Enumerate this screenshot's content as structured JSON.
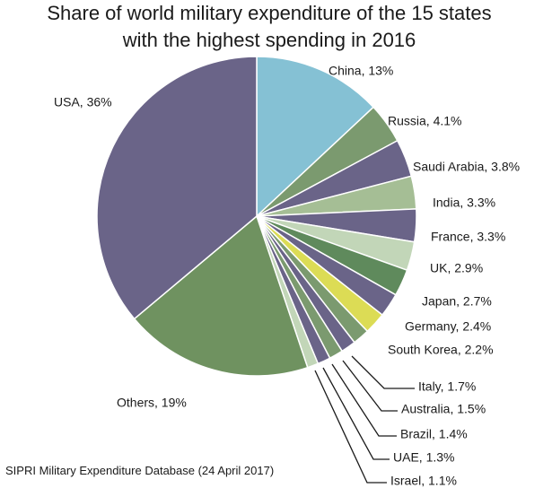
{
  "chart_data": {
    "type": "pie",
    "title_lines": [
      "Share of world military expenditure of the 15 states",
      "with the highest spending in 2016"
    ],
    "source": "SIPRI Military Expenditure Database (24 April 2017)",
    "unit": "%",
    "slices": [
      {
        "label": "China, 13%",
        "value": 13,
        "color": "#85c1d4"
      },
      {
        "label": "Russia, 4.1%",
        "value": 4.1,
        "color": "#7b9a6f"
      },
      {
        "label": "Saudi Arabia, 3.8%",
        "value": 3.8,
        "color": "#6a6488"
      },
      {
        "label": "India, 3.3%",
        "value": 3.3,
        "color": "#a5be95"
      },
      {
        "label": "France, 3.3%",
        "value": 3.3,
        "color": "#6a6488"
      },
      {
        "label": "UK, 2.9%",
        "value": 2.9,
        "color": "#c2d6b8"
      },
      {
        "label": "Japan, 2.7%",
        "value": 2.7,
        "color": "#5f8a5c"
      },
      {
        "label": "Germany, 2.4%",
        "value": 2.4,
        "color": "#6a6488"
      },
      {
        "label": "South Korea, 2.2%",
        "value": 2.2,
        "color": "#dcdc55"
      },
      {
        "label": "Italy, 1.7%",
        "value": 1.7,
        "color": "#7b9a6f"
      },
      {
        "label": "Australia, 1.5%",
        "value": 1.5,
        "color": "#6a6488"
      },
      {
        "label": "Brazil, 1.4%",
        "value": 1.4,
        "color": "#7b9a6f"
      },
      {
        "label": "UAE, 1.3%",
        "value": 1.3,
        "color": "#6a6488"
      },
      {
        "label": "Israel, 1.1%",
        "value": 1.1,
        "color": "#c2d6b8"
      },
      {
        "label": "Others, 19%",
        "value": 19,
        "color": "#6f9260"
      },
      {
        "label": "USA, 36%",
        "value": 36,
        "color": "#6a6488"
      }
    ]
  }
}
